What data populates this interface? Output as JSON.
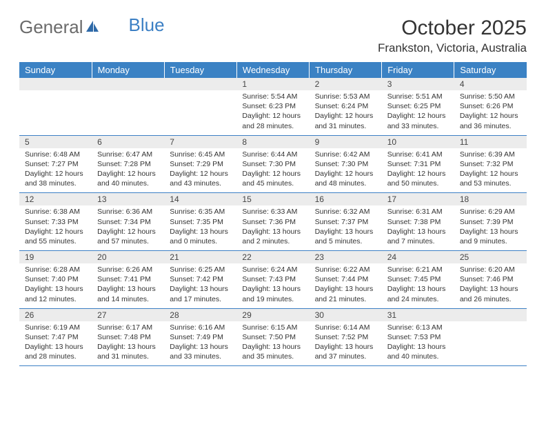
{
  "logo": {
    "part1": "General",
    "part2": "Blue"
  },
  "title": "October 2025",
  "location": "Frankston, Victoria, Australia",
  "colors": {
    "header_bg": "#3b82c4",
    "header_text": "#ffffff",
    "daynum_bg": "#ececec",
    "border": "#3b7fc4",
    "logo_gray": "#6b6b6b",
    "logo_blue": "#3b7fc4",
    "text": "#333333",
    "background": "#ffffff"
  },
  "typography": {
    "title_fontsize": 30,
    "location_fontsize": 17,
    "header_fontsize": 13,
    "daynum_fontsize": 12,
    "detail_fontsize": 10.5,
    "logo_fontsize": 26
  },
  "weekdays": [
    "Sunday",
    "Monday",
    "Tuesday",
    "Wednesday",
    "Thursday",
    "Friday",
    "Saturday"
  ],
  "weeks": [
    [
      null,
      null,
      null,
      {
        "n": "1",
        "sr": "5:54 AM",
        "ss": "6:23 PM",
        "dl": "12 hours and 28 minutes."
      },
      {
        "n": "2",
        "sr": "5:53 AM",
        "ss": "6:24 PM",
        "dl": "12 hours and 31 minutes."
      },
      {
        "n": "3",
        "sr": "5:51 AM",
        "ss": "6:25 PM",
        "dl": "12 hours and 33 minutes."
      },
      {
        "n": "4",
        "sr": "5:50 AM",
        "ss": "6:26 PM",
        "dl": "12 hours and 36 minutes."
      }
    ],
    [
      {
        "n": "5",
        "sr": "6:48 AM",
        "ss": "7:27 PM",
        "dl": "12 hours and 38 minutes."
      },
      {
        "n": "6",
        "sr": "6:47 AM",
        "ss": "7:28 PM",
        "dl": "12 hours and 40 minutes."
      },
      {
        "n": "7",
        "sr": "6:45 AM",
        "ss": "7:29 PM",
        "dl": "12 hours and 43 minutes."
      },
      {
        "n": "8",
        "sr": "6:44 AM",
        "ss": "7:30 PM",
        "dl": "12 hours and 45 minutes."
      },
      {
        "n": "9",
        "sr": "6:42 AM",
        "ss": "7:30 PM",
        "dl": "12 hours and 48 minutes."
      },
      {
        "n": "10",
        "sr": "6:41 AM",
        "ss": "7:31 PM",
        "dl": "12 hours and 50 minutes."
      },
      {
        "n": "11",
        "sr": "6:39 AM",
        "ss": "7:32 PM",
        "dl": "12 hours and 53 minutes."
      }
    ],
    [
      {
        "n": "12",
        "sr": "6:38 AM",
        "ss": "7:33 PM",
        "dl": "12 hours and 55 minutes."
      },
      {
        "n": "13",
        "sr": "6:36 AM",
        "ss": "7:34 PM",
        "dl": "12 hours and 57 minutes."
      },
      {
        "n": "14",
        "sr": "6:35 AM",
        "ss": "7:35 PM",
        "dl": "13 hours and 0 minutes."
      },
      {
        "n": "15",
        "sr": "6:33 AM",
        "ss": "7:36 PM",
        "dl": "13 hours and 2 minutes."
      },
      {
        "n": "16",
        "sr": "6:32 AM",
        "ss": "7:37 PM",
        "dl": "13 hours and 5 minutes."
      },
      {
        "n": "17",
        "sr": "6:31 AM",
        "ss": "7:38 PM",
        "dl": "13 hours and 7 minutes."
      },
      {
        "n": "18",
        "sr": "6:29 AM",
        "ss": "7:39 PM",
        "dl": "13 hours and 9 minutes."
      }
    ],
    [
      {
        "n": "19",
        "sr": "6:28 AM",
        "ss": "7:40 PM",
        "dl": "13 hours and 12 minutes."
      },
      {
        "n": "20",
        "sr": "6:26 AM",
        "ss": "7:41 PM",
        "dl": "13 hours and 14 minutes."
      },
      {
        "n": "21",
        "sr": "6:25 AM",
        "ss": "7:42 PM",
        "dl": "13 hours and 17 minutes."
      },
      {
        "n": "22",
        "sr": "6:24 AM",
        "ss": "7:43 PM",
        "dl": "13 hours and 19 minutes."
      },
      {
        "n": "23",
        "sr": "6:22 AM",
        "ss": "7:44 PM",
        "dl": "13 hours and 21 minutes."
      },
      {
        "n": "24",
        "sr": "6:21 AM",
        "ss": "7:45 PM",
        "dl": "13 hours and 24 minutes."
      },
      {
        "n": "25",
        "sr": "6:20 AM",
        "ss": "7:46 PM",
        "dl": "13 hours and 26 minutes."
      }
    ],
    [
      {
        "n": "26",
        "sr": "6:19 AM",
        "ss": "7:47 PM",
        "dl": "13 hours and 28 minutes."
      },
      {
        "n": "27",
        "sr": "6:17 AM",
        "ss": "7:48 PM",
        "dl": "13 hours and 31 minutes."
      },
      {
        "n": "28",
        "sr": "6:16 AM",
        "ss": "7:49 PM",
        "dl": "13 hours and 33 minutes."
      },
      {
        "n": "29",
        "sr": "6:15 AM",
        "ss": "7:50 PM",
        "dl": "13 hours and 35 minutes."
      },
      {
        "n": "30",
        "sr": "6:14 AM",
        "ss": "7:52 PM",
        "dl": "13 hours and 37 minutes."
      },
      {
        "n": "31",
        "sr": "6:13 AM",
        "ss": "7:53 PM",
        "dl": "13 hours and 40 minutes."
      },
      null
    ]
  ],
  "labels": {
    "sunrise": "Sunrise: ",
    "sunset": "Sunset: ",
    "daylight": "Daylight: "
  }
}
